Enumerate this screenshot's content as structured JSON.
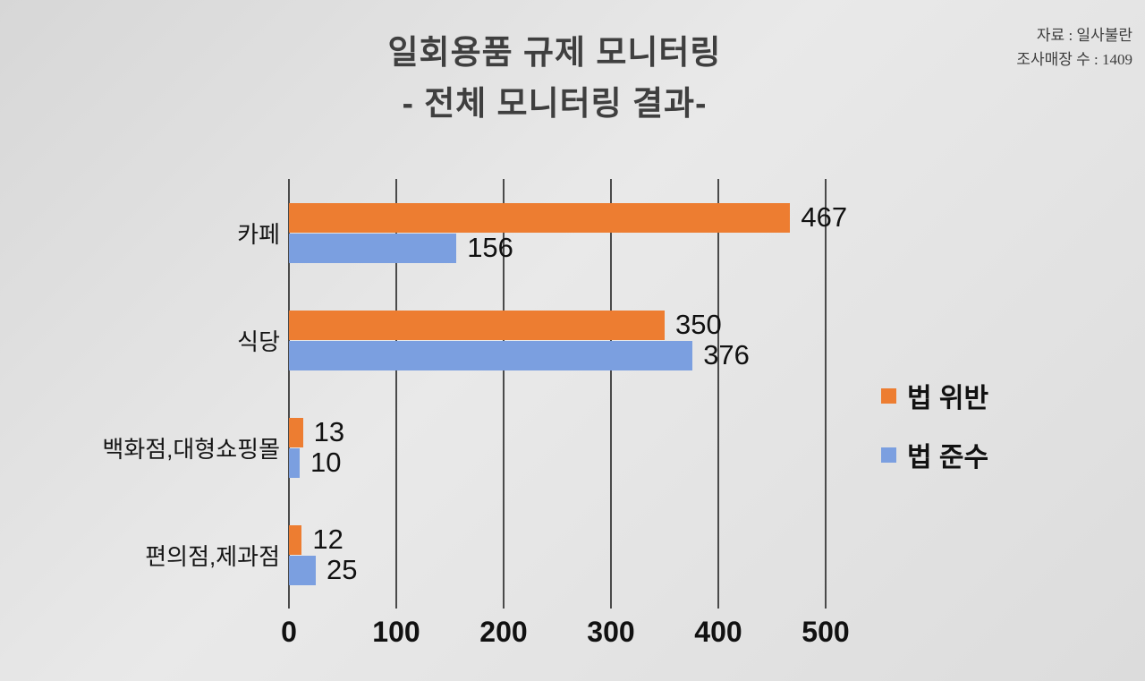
{
  "header": {
    "title_line1": "일회용품 규제 모니터링",
    "title_line2": "- 전체 모니터링 결과-",
    "source_line1": "자료 : 일사불란",
    "source_line2": "조사매장 수 : 1409"
  },
  "chart_data": {
    "type": "bar",
    "orientation": "horizontal",
    "title": "일회용품 규제 모니터링 - 전체 모니터링 결과-",
    "categories": [
      "카페",
      "식당",
      "백화점,대형쇼핑몰",
      "편의점,제과점"
    ],
    "series": [
      {
        "name": "법 위반",
        "color": "#ED7D31",
        "values": [
          467,
          350,
          13,
          12
        ]
      },
      {
        "name": "법 준수",
        "color": "#7B9FE0",
        "values": [
          156,
          376,
          10,
          25
        ]
      }
    ],
    "x_ticks": [
      0,
      100,
      200,
      300,
      400,
      500
    ],
    "xlim": [
      0,
      500
    ],
    "grid": "vertical",
    "legend_position": "right"
  },
  "colors": {
    "violation": "#ED7D31",
    "compliance": "#7B9FE0",
    "gridline": "#4a4a4a"
  }
}
